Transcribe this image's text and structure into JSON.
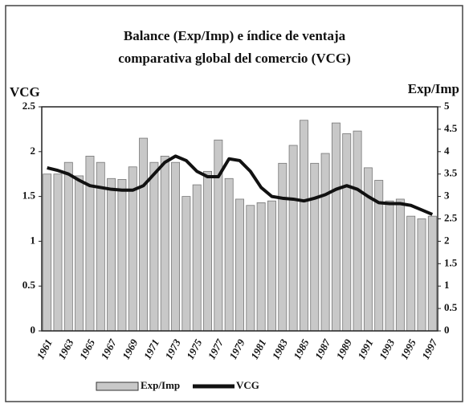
{
  "chart_data": {
    "type": "bar-line",
    "title": [
      "Balance (Exp/Imp) e índice de ventaja",
      "comparativa global del comercio (VCG)"
    ],
    "ylabel": "VCG",
    "y2label": "Exp/Imp",
    "categories": [
      "1961",
      null,
      "1963",
      null,
      "1965",
      null,
      "1967",
      null,
      "1969",
      null,
      "1971",
      null,
      "1973",
      null,
      "1975",
      null,
      "1977",
      null,
      "1979",
      null,
      "1981",
      null,
      "1983",
      null,
      "1985",
      null,
      "1987",
      null,
      "1989",
      null,
      "1991",
      null,
      "1993",
      null,
      "1995",
      null,
      "1997"
    ],
    "series": [
      {
        "name": "Exp/Imp",
        "type": "bar",
        "axis": "y2",
        "color": "#c8c8c8",
        "values": [
          3.5,
          3.5,
          3.76,
          3.46,
          3.9,
          3.76,
          3.4,
          3.38,
          3.66,
          4.3,
          3.76,
          3.9,
          3.76,
          3.0,
          3.26,
          3.56,
          4.26,
          3.4,
          2.94,
          2.8,
          2.86,
          2.9,
          3.74,
          4.14,
          4.7,
          3.74,
          3.96,
          4.64,
          4.4,
          4.46,
          3.64,
          3.36,
          2.9,
          2.94,
          2.56,
          2.5,
          2.56
        ]
      },
      {
        "name": "VCG",
        "type": "line",
        "color": "#111111",
        "values": [
          1.82,
          1.79,
          1.75,
          1.68,
          1.62,
          1.6,
          1.58,
          1.57,
          1.57,
          1.62,
          1.75,
          1.88,
          1.95,
          1.9,
          1.78,
          1.72,
          1.72,
          1.92,
          1.9,
          1.78,
          1.6,
          1.5,
          1.48,
          1.47,
          1.45,
          1.48,
          1.52,
          1.58,
          1.62,
          1.58,
          1.5,
          1.43,
          1.42,
          1.42,
          1.4,
          1.35,
          1.3
        ]
      }
    ],
    "ylim": [
      0,
      2.5
    ],
    "yticks": [
      0,
      0.5,
      1,
      1.5,
      2,
      2.5
    ],
    "y2lim": [
      0,
      5
    ],
    "y2ticks": [
      0,
      0.5,
      1,
      1.5,
      2,
      2.5,
      3,
      3.5,
      4,
      4.5,
      5
    ],
    "legend": "bottom"
  }
}
